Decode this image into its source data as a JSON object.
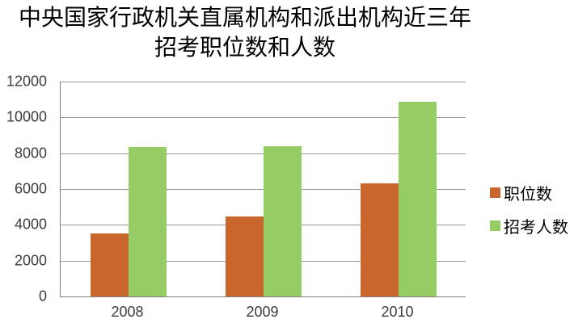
{
  "chart_data": {
    "type": "bar",
    "title": "中央国家行政机关直属机构和派出机构近三年招考职位数和人数",
    "title_line1": "中央国家行政机关直属机构和派出机构近三年",
    "title_line2": "招考职位数和人数",
    "categories": [
      "2008",
      "2009",
      "2010"
    ],
    "series": [
      {
        "name": "职位数",
        "color": "#c9662d",
        "values": [
          3500,
          4450,
          6300
        ]
      },
      {
        "name": "招考人数",
        "color": "#95cc64",
        "values": [
          8350,
          8400,
          10870
        ]
      }
    ],
    "xlabel": "",
    "ylabel": "",
    "ylim": [
      0,
      12000
    ],
    "yticks": [
      0,
      2000,
      4000,
      6000,
      8000,
      10000,
      12000
    ],
    "grid": true,
    "legend_position": "right"
  },
  "colors": {
    "background": "#ffffff",
    "gridline": "#9a9a9a",
    "axis": "#808080",
    "tick_text": "#3d3d3d",
    "title_text": "#000000"
  }
}
